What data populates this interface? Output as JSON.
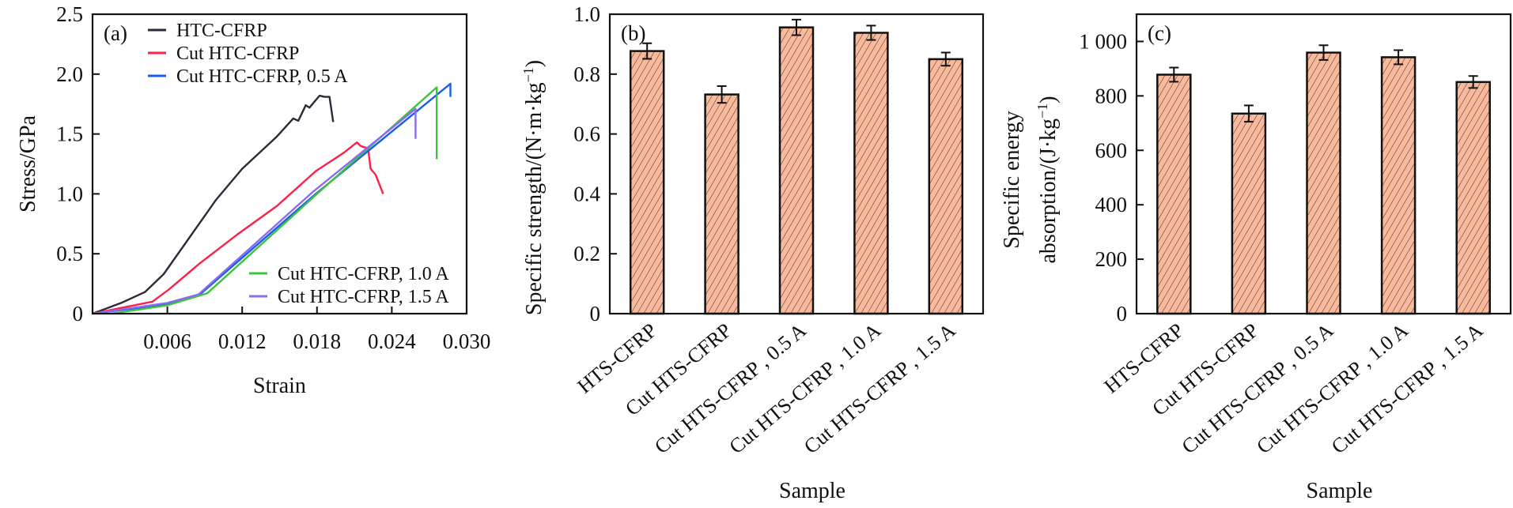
{
  "chart_data": [
    {
      "type": "line",
      "panel_label": "(a)",
      "xlabel": "Strain",
      "ylabel": "Stress/GPa",
      "xlim": [
        0,
        0.03
      ],
      "ylim": [
        0,
        2.5
      ],
      "xticks": [
        0.006,
        0.012,
        0.018,
        0.024,
        0.03
      ],
      "xtick_labels": [
        "0.006",
        "0.012",
        "0.018",
        "0.024",
        "0.030"
      ],
      "yticks": [
        0,
        0.5,
        1.0,
        1.5,
        2.0,
        2.5
      ],
      "ytick_labels": [
        "0",
        "0.5",
        "1.0",
        "1.5",
        "2.0",
        "2.5"
      ],
      "grid": false,
      "legend_placement": [
        "top-left",
        "bottom-right"
      ],
      "series": [
        {
          "name": "HTC-CFRP",
          "color": "#2b2a3a",
          "legend_group": 0,
          "points": [
            [
              0,
              0
            ],
            [
              0.0023,
              0.09
            ],
            [
              0.0042,
              0.18
            ],
            [
              0.0057,
              0.33
            ],
            [
              0.0078,
              0.64
            ],
            [
              0.0099,
              0.95
            ],
            [
              0.012,
              1.21
            ],
            [
              0.0148,
              1.48
            ],
            [
              0.0161,
              1.63
            ],
            [
              0.0165,
              1.61
            ],
            [
              0.0171,
              1.74
            ],
            [
              0.0174,
              1.72
            ],
            [
              0.0182,
              1.82
            ],
            [
              0.0186,
              1.81
            ],
            [
              0.019,
              1.81
            ],
            [
              0.0193,
              1.6
            ]
          ]
        },
        {
          "name": "Cut HTC-CFRP",
          "color": "#ff1f4b",
          "legend_group": 0,
          "points": [
            [
              0,
              0
            ],
            [
              0.0048,
              0.1
            ],
            [
              0.0061,
              0.2
            ],
            [
              0.0086,
              0.42
            ],
            [
              0.0116,
              0.66
            ],
            [
              0.0148,
              0.9
            ],
            [
              0.0179,
              1.19
            ],
            [
              0.0201,
              1.34
            ],
            [
              0.0212,
              1.43
            ],
            [
              0.0215,
              1.4
            ],
            [
              0.0221,
              1.38
            ],
            [
              0.0223,
              1.21
            ],
            [
              0.0227,
              1.16
            ],
            [
              0.0233,
              1.0
            ]
          ]
        },
        {
          "name": "Cut HTC-CFRP, 0.5 A",
          "color": "#1a5cf0",
          "legend_group": 0,
          "points": [
            [
              0,
              0
            ],
            [
              0.0061,
              0.08
            ],
            [
              0.0085,
              0.15
            ],
            [
              0.0179,
              1.0
            ],
            [
              0.0287,
              1.92
            ],
            [
              0.0287,
              1.81
            ]
          ]
        },
        {
          "name": "Cut HTC-CFRP, 1.0 A",
          "color": "#3ec43a",
          "legend_group": 1,
          "points": [
            [
              0.0015,
              0
            ],
            [
              0.006,
              0.07
            ],
            [
              0.0092,
              0.17
            ],
            [
              0.018,
              1.0
            ],
            [
              0.0276,
              1.89
            ],
            [
              0.0276,
              1.29
            ]
          ]
        },
        {
          "name": "Cut HTC-CFRP, 1.5 A",
          "color": "#8a6cf0",
          "legend_group": 1,
          "points": [
            [
              0,
              0
            ],
            [
              0.006,
              0.09
            ],
            [
              0.0085,
              0.16
            ],
            [
              0.0177,
              1.02
            ],
            [
              0.0259,
              1.71
            ],
            [
              0.0259,
              1.46
            ]
          ]
        }
      ]
    },
    {
      "type": "bar",
      "panel_label": "(b)",
      "xlabel": "Sample",
      "ylabel_parts": [
        "Specific strength/(N·m·kg",
        "−1",
        ")"
      ],
      "ylim": [
        0,
        1.0
      ],
      "yticks": [
        0,
        0.2,
        0.4,
        0.6,
        0.8,
        1.0
      ],
      "ytick_labels": [
        "0",
        "0.2",
        "0.4",
        "0.6",
        "0.8",
        "1.0"
      ],
      "categories": [
        "HTS-CFRP",
        "Cut HTS-CFRP",
        "Cut HTS-CFRP , 0.5 A",
        "Cut HTS-CFRP , 1.0 A",
        "Cut HTS-CFRP , 1.5 A"
      ],
      "values": [
        0.877,
        0.732,
        0.956,
        0.938,
        0.85
      ],
      "errors": [
        0.026,
        0.028,
        0.026,
        0.024,
        0.022
      ],
      "bar_color": "#f9b99a",
      "hatch": "diagonal"
    },
    {
      "type": "bar",
      "panel_label": "(c)",
      "xlabel": "Sample",
      "ylabel_line1": "Specific energy",
      "ylabel_parts": [
        "absorption/(J·kg",
        "−1",
        ")"
      ],
      "ylim": [
        0,
        1100
      ],
      "yticks": [
        0,
        200,
        400,
        600,
        800,
        1000
      ],
      "ytick_labels": [
        "0",
        "200",
        "400",
        "600",
        "800",
        "1 000"
      ],
      "categories": [
        "HTS-CFRP",
        "Cut HTS-CFRP",
        "Cut HTS-CFRP , 0.5 A",
        "Cut HTS-CFRP , 1.0 A",
        "Cut HTS-CFRP , 1.5 A"
      ],
      "values": [
        878,
        735,
        959,
        942,
        851
      ],
      "errors": [
        26,
        30,
        27,
        26,
        22
      ],
      "bar_color": "#f9b99a",
      "hatch": "diagonal"
    }
  ]
}
